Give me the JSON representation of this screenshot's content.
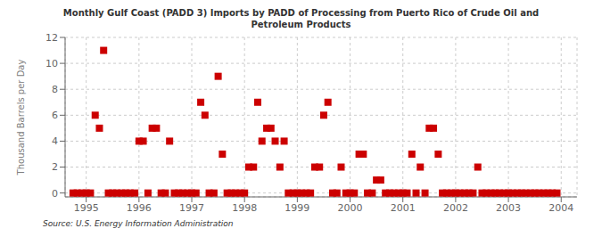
{
  "chart_data": {
    "type": "scatter",
    "title": "Monthly Gulf Coast (PADD 3) Imports by PADD of Processing from Puerto Rico of Crude Oil and\nPetroleum Products",
    "ylabel": "Thousand Barrels per Day",
    "annotations": [
      "Source: U.S. Energy Information Administration"
    ],
    "x": [
      1994.75,
      1994.83,
      1994.92,
      1995.0,
      1995.08,
      1995.17,
      1995.25,
      1995.33,
      1995.42,
      1995.5,
      1995.58,
      1995.67,
      1995.75,
      1995.83,
      1995.92,
      1996.0,
      1996.08,
      1996.17,
      1996.25,
      1996.33,
      1996.42,
      1996.5,
      1996.58,
      1996.67,
      1996.75,
      1996.83,
      1996.92,
      1997.0,
      1997.08,
      1997.17,
      1997.25,
      1997.33,
      1997.42,
      1997.5,
      1997.58,
      1997.67,
      1997.75,
      1997.83,
      1997.92,
      1998.0,
      1998.08,
      1998.17,
      1998.25,
      1998.33,
      1998.42,
      1998.5,
      1998.58,
      1998.67,
      1998.75,
      1998.83,
      1998.92,
      1999.0,
      1999.08,
      1999.17,
      1999.25,
      1999.33,
      1999.42,
      1999.5,
      1999.58,
      1999.67,
      1999.75,
      1999.83,
      1999.92,
      2000.0,
      2000.08,
      2000.17,
      2000.25,
      2000.33,
      2000.42,
      2000.5,
      2000.58,
      2000.67,
      2000.75,
      2000.83,
      2000.92,
      2001.0,
      2001.08,
      2001.17,
      2001.25,
      2001.33,
      2001.42,
      2001.5,
      2001.58,
      2001.67,
      2001.75,
      2001.83,
      2001.92,
      2002.0,
      2002.08,
      2002.17,
      2002.25,
      2002.33,
      2002.42,
      2002.5,
      2002.58,
      2002.67,
      2002.75,
      2002.83,
      2002.92,
      2003.0,
      2003.08,
      2003.17,
      2003.25,
      2003.33,
      2003.42,
      2003.5,
      2003.58,
      2003.67,
      2003.75,
      2003.83,
      2003.92
    ],
    "values": [
      0,
      0,
      0,
      0,
      0,
      6,
      5,
      11,
      0,
      0,
      0,
      0,
      0,
      0,
      0,
      4,
      4,
      0,
      5,
      5,
      0,
      0,
      4,
      0,
      0,
      0,
      0,
      0,
      0,
      7,
      6,
      0,
      0,
      9,
      3,
      0,
      0,
      0,
      0,
      0,
      2,
      2,
      7,
      4,
      5,
      5,
      4,
      2,
      4,
      0,
      0,
      0,
      0,
      0,
      0,
      2,
      2,
      6,
      7,
      0,
      0,
      2,
      0,
      0,
      0,
      3,
      3,
      0,
      0,
      1,
      1,
      0,
      0,
      0,
      0,
      0,
      0,
      3,
      0,
      2,
      0,
      5,
      5,
      3,
      0,
      0,
      0,
      0,
      0,
      0,
      0,
      0,
      2,
      0,
      0,
      0,
      0,
      0,
      0,
      0,
      0,
      0,
      0,
      0,
      0,
      0,
      0,
      0,
      0,
      0,
      0
    ],
    "color": "#cc0000",
    "marker": "square",
    "xlim": [
      1994.6,
      2004.3
    ],
    "ylim": [
      -0.3,
      12
    ],
    "xticks": [
      1995,
      1996,
      1997,
      1998,
      1999,
      2000,
      2001,
      2002,
      2003,
      2004
    ],
    "yticks": [
      0,
      2,
      4,
      6,
      8,
      10,
      12
    ],
    "grid": true
  }
}
